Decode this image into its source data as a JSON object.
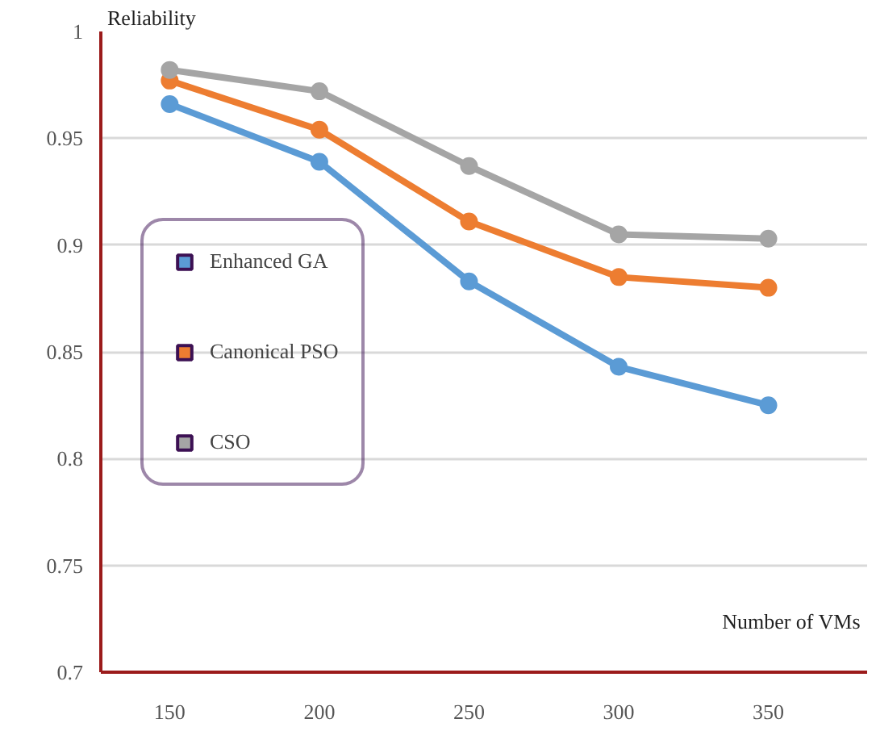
{
  "chart_data": {
    "type": "line",
    "xlabel": "Number of VMs",
    "ylabel": "Reliability",
    "x": [
      150,
      200,
      250,
      300,
      350
    ],
    "xlim": [
      127,
      383
    ],
    "xticks": [
      150,
      200,
      250,
      300,
      350
    ],
    "ylim": [
      0.7,
      1.0
    ],
    "yticks": [
      0.7,
      0.75,
      0.8,
      0.85,
      0.9,
      0.95,
      1
    ],
    "grid": "y",
    "legend": "left",
    "marker": "circle",
    "line_style": "solid",
    "series": [
      {
        "name": "Enhanced GA",
        "color": "#5b9bd5",
        "values": [
          0.966,
          0.939,
          0.883,
          0.843,
          0.825
        ]
      },
      {
        "name": "Canonical PSO",
        "color": "#ed7d31",
        "values": [
          0.977,
          0.954,
          0.911,
          0.885,
          0.88
        ]
      },
      {
        "name": "CSO",
        "color": "#a5a5a5",
        "values": [
          0.982,
          0.972,
          0.937,
          0.905,
          0.903
        ]
      }
    ]
  }
}
